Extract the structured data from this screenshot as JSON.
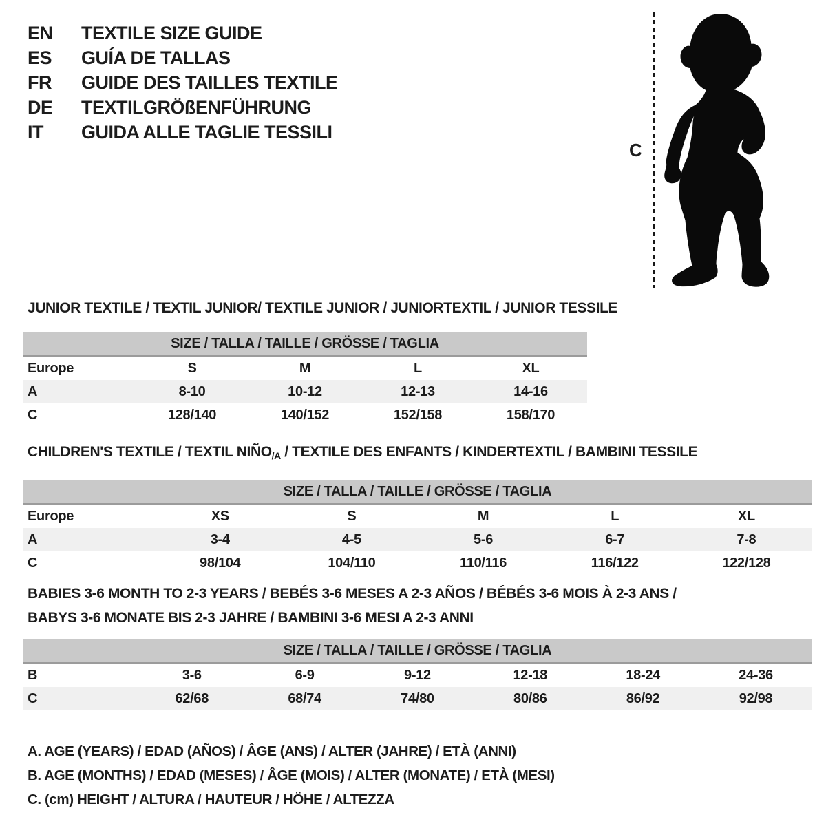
{
  "header": {
    "languages": [
      {
        "code": "EN",
        "title": "TEXTILE SIZE GUIDE"
      },
      {
        "code": "ES",
        "title": "GUÍA DE TALLAS"
      },
      {
        "code": "FR",
        "title": "GUIDE DES TAILLES TEXTILE"
      },
      {
        "code": "DE",
        "title": "TEXTILGRÖßENFÜHRUNG"
      },
      {
        "code": "IT",
        "title": "GUIDA ALLE TAGLIE TESSILI"
      }
    ]
  },
  "figure": {
    "label": "C",
    "icon": "toddler-silhouette"
  },
  "sections": [
    {
      "id": "junior",
      "title": "JUNIOR TEXTILE / TEXTIL JUNIOR/ TEXTILE JUNIOR / JUNIORTEXTIL / JUNIOR TESSILE",
      "size_header": "SIZE / TALLA / TAILLE / GRÖSSE / TAGLIA",
      "rows": [
        {
          "label": "Europe",
          "values": [
            "S",
            "M",
            "L",
            "XL"
          ],
          "shaded": false
        },
        {
          "label": "A",
          "values": [
            "8-10",
            "10-12",
            "12-13",
            "14-16"
          ],
          "shaded": true
        },
        {
          "label": "C",
          "values": [
            "128/140",
            "140/152",
            "152/158",
            "158/170"
          ],
          "shaded": false
        }
      ]
    },
    {
      "id": "children",
      "title": "CHILDREN'S TEXTILE / TEXTIL NIÑO",
      "title_sub": "/A",
      "title_suffix": " / TEXTILE DES ENFANTS / KINDERTEXTIL / BAMBINI TESSILE",
      "size_header": "SIZE / TALLA / TAILLE / GRÖSSE / TAGLIA",
      "rows": [
        {
          "label": "Europe",
          "values": [
            "XS",
            "S",
            "M",
            "L",
            "XL"
          ],
          "shaded": false
        },
        {
          "label": "A",
          "values": [
            "3-4",
            "4-5",
            "5-6",
            "6-7",
            "7-8"
          ],
          "shaded": true
        },
        {
          "label": "C",
          "values": [
            "98/104",
            "104/110",
            "110/116",
            "116/122",
            "122/128"
          ],
          "shaded": false
        }
      ]
    },
    {
      "id": "babies",
      "title": "BABIES 3-6 MONTH TO 2-3 YEARS / BEBÉS 3-6 MESES A 2-3 AÑOS / BÉBÉS 3-6 MOIS À 2-3 ANS /",
      "title_line2": "BABYS 3-6 MONATE BIS 2-3 JAHRE / BAMBINI 3-6 MESI A 2-3 ANNI",
      "size_header": "SIZE / TALLA / TAILLE / GRÖSSE / TAGLIA",
      "rows": [
        {
          "label": "B",
          "values": [
            "3-6",
            "6-9",
            "9-12",
            "12-18",
            "18-24",
            "24-36"
          ],
          "shaded": false
        },
        {
          "label": "C",
          "values": [
            "62/68",
            "68/74",
            "74/80",
            "80/86",
            "86/92",
            "92/98"
          ],
          "shaded": true
        }
      ]
    }
  ],
  "notes": [
    "A. AGE (YEARS) / EDAD (AÑOS) / ÂGE (ANS) / ALTER (JAHRE) / ETÀ (ANNI)",
    "B. AGE (MONTHS) / EDAD (MESES) / ÂGE (MOIS) / ALTER (MONATE) / ETÀ (MESI)",
    "C. (cm) HEIGHT / ALTURA / HAUTEUR / HÖHE / ALTEZZA"
  ],
  "colors": {
    "size_header_bar": "#c9c9c9",
    "shaded_row": "#f0f0f0",
    "text": "#1c1c1c"
  }
}
